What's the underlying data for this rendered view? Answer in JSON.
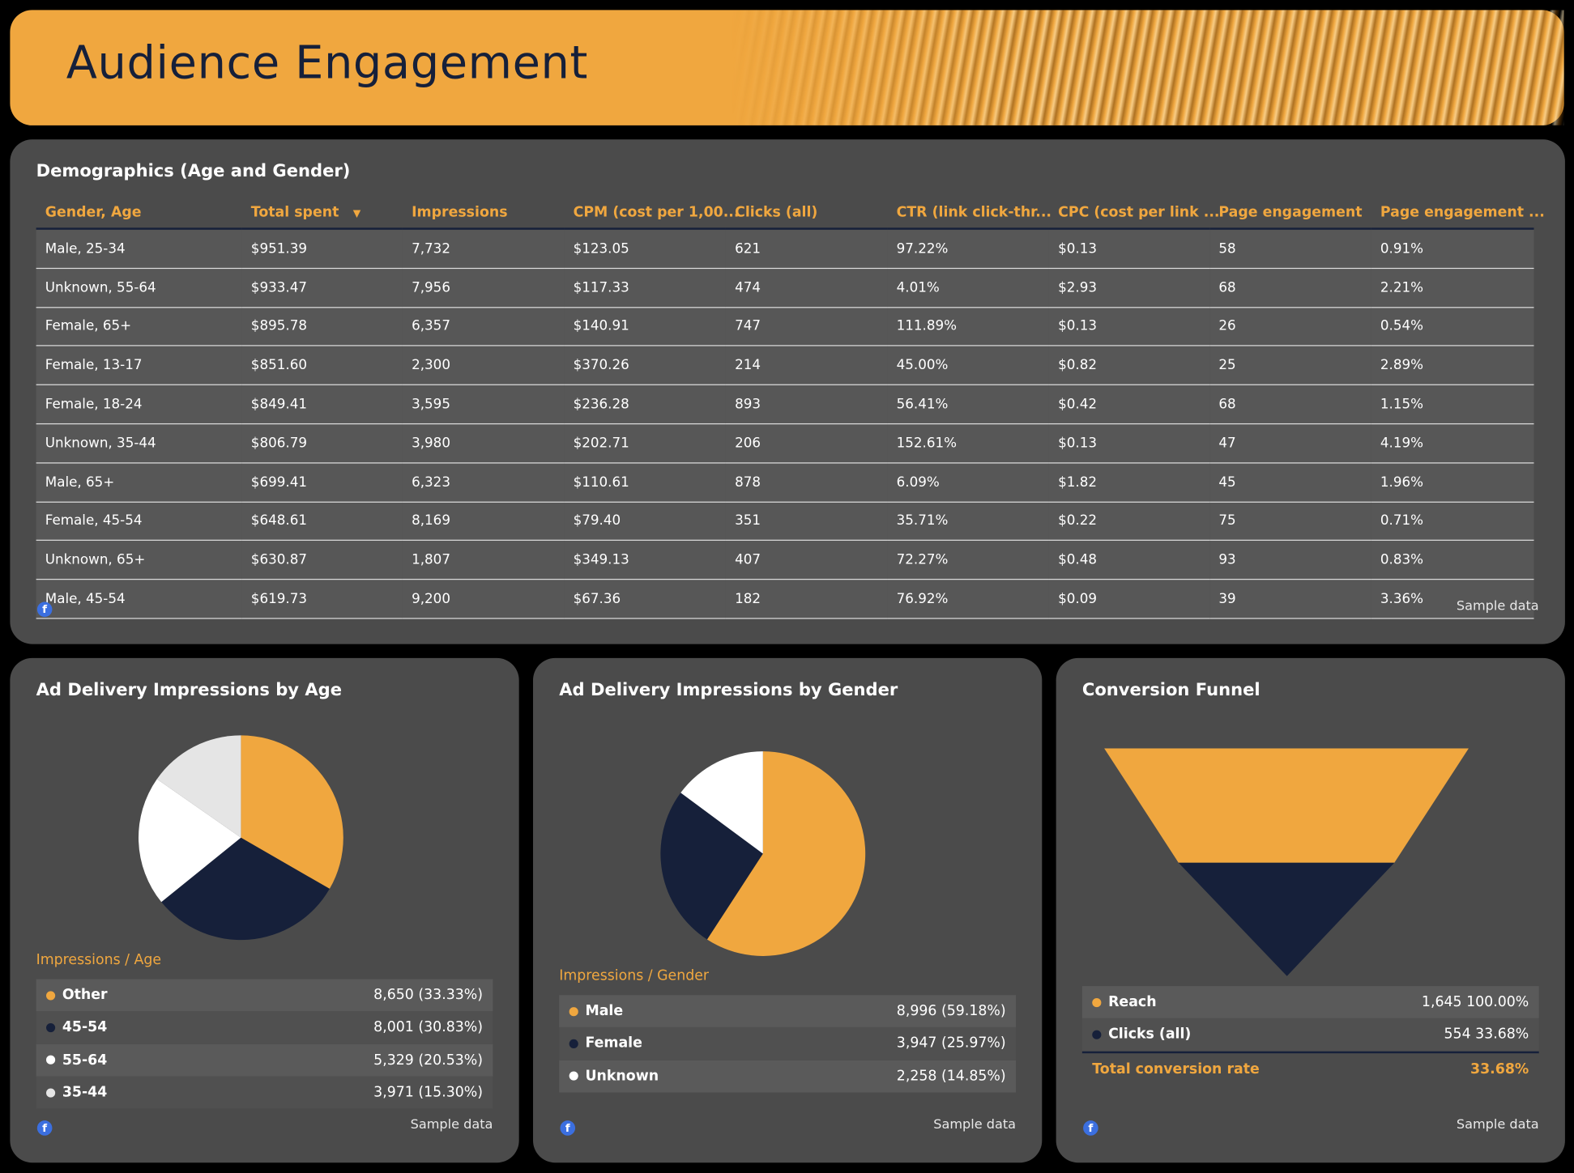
{
  "header": {
    "title": "Audience Engagement"
  },
  "colors": {
    "accent": "#f0a73f",
    "navy": "#16203a",
    "white": "#ffffff",
    "light_gray": "#e5e5e5",
    "panel": "#4b4b4b"
  },
  "demographics": {
    "title": "Demographics (Age and Gender)",
    "columns": [
      "Gender, Age",
      "Total spent",
      "Impressions",
      "CPM (cost per 1,00...",
      "Clicks (all)",
      "CTR (link click-thr...",
      "CPC (cost per link ...",
      "Page engagement",
      "Page engagement ..."
    ],
    "sort_indicator": "▼",
    "rows": [
      [
        "Male, 25-34",
        "$951.39",
        "7,732",
        "$123.05",
        "621",
        "97.22%",
        "$0.13",
        "58",
        "0.91%"
      ],
      [
        "Unknown, 55-64",
        "$933.47",
        "7,956",
        "$117.33",
        "474",
        "4.01%",
        "$2.93",
        "68",
        "2.21%"
      ],
      [
        "Female, 65+",
        "$895.78",
        "6,357",
        "$140.91",
        "747",
        "111.89%",
        "$0.13",
        "26",
        "0.54%"
      ],
      [
        "Female, 13-17",
        "$851.60",
        "2,300",
        "$370.26",
        "214",
        "45.00%",
        "$0.82",
        "25",
        "2.89%"
      ],
      [
        "Female, 18-24",
        "$849.41",
        "3,595",
        "$236.28",
        "893",
        "56.41%",
        "$0.42",
        "68",
        "1.15%"
      ],
      [
        "Unknown, 35-44",
        "$806.79",
        "3,980",
        "$202.71",
        "206",
        "152.61%",
        "$0.13",
        "47",
        "4.19%"
      ],
      [
        "Male, 65+",
        "$699.41",
        "6,323",
        "$110.61",
        "878",
        "6.09%",
        "$1.82",
        "45",
        "1.96%"
      ],
      [
        "Female, 45-54",
        "$648.61",
        "8,169",
        "$79.40",
        "351",
        "35.71%",
        "$0.22",
        "75",
        "0.71%"
      ],
      [
        "Unknown, 65+",
        "$630.87",
        "1,807",
        "$349.13",
        "407",
        "72.27%",
        "$0.48",
        "93",
        "0.83%"
      ],
      [
        "Male, 45-54",
        "$619.73",
        "9,200",
        "$67.36",
        "182",
        "76.92%",
        "$0.09",
        "39",
        "3.36%"
      ]
    ],
    "footer": "Sample data"
  },
  "age_chart": {
    "title": "Ad Delivery Impressions by Age",
    "legend_title": "Impressions / Age",
    "items": [
      {
        "label": "Other",
        "value": "8,650",
        "pct": "(33.33%)",
        "share": 33.33,
        "color": "#f0a73f"
      },
      {
        "label": "45-54",
        "value": "8,001",
        "pct": "(30.83%)",
        "share": 30.83,
        "color": "#16203a"
      },
      {
        "label": "55-64",
        "value": "5,329",
        "pct": "(20.53%)",
        "share": 20.53,
        "color": "#ffffff"
      },
      {
        "label": "35-44",
        "value": "3,971",
        "pct": "(15.30%)",
        "share": 15.3,
        "color": "#e5e5e5"
      }
    ],
    "footer": "Sample data"
  },
  "gender_chart": {
    "title": "Ad Delivery Impressions by Gender",
    "legend_title": "Impressions / Gender",
    "items": [
      {
        "label": "Male",
        "value": "8,996",
        "pct": "(59.18%)",
        "share": 59.18,
        "color": "#f0a73f"
      },
      {
        "label": "Female",
        "value": "3,947",
        "pct": "(25.97%)",
        "share": 25.97,
        "color": "#16203a"
      },
      {
        "label": "Unknown",
        "value": "2,258",
        "pct": "(14.85%)",
        "share": 14.85,
        "color": "#ffffff"
      }
    ],
    "footer": "Sample data"
  },
  "funnel": {
    "title": "Conversion Funnel",
    "items": [
      {
        "label": "Reach",
        "value": "1,645",
        "pct": "100.00%",
        "share": 100,
        "color": "#f0a73f"
      },
      {
        "label": "Clicks (all)",
        "value": "554",
        "pct": "33.68%",
        "share": 33.68,
        "color": "#16203a"
      }
    ],
    "total_label": "Total conversion rate",
    "total_value": "33.68%",
    "footer": "Sample data"
  }
}
